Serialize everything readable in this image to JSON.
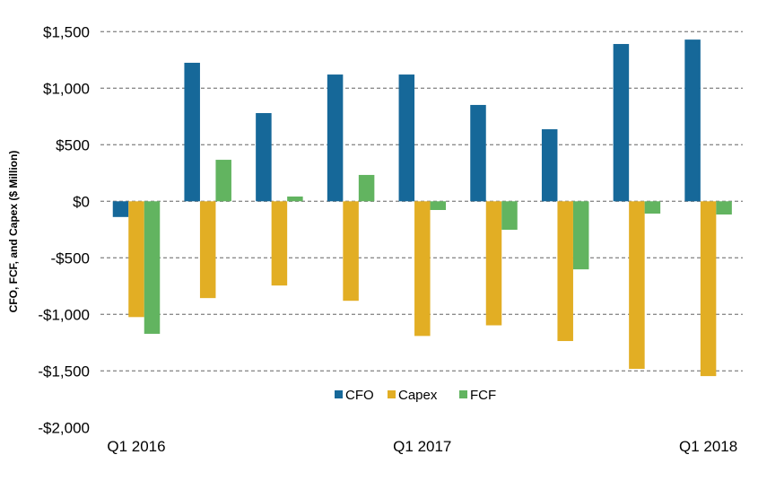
{
  "chart_data": {
    "type": "bar",
    "title": "",
    "xlabel": "",
    "ylabel": "CFO, FCF, and Capex ($ Million)",
    "ylim": [
      -2000,
      1500
    ],
    "yticks": [
      1500,
      1000,
      500,
      0,
      -500,
      -1000,
      -1500,
      -2000
    ],
    "ytick_labels": [
      "$1,500",
      "$1,000",
      "$500",
      "$0",
      "-$500",
      "-$1,000",
      "-$1,500",
      "-$2,000"
    ],
    "x_tick_labels": [
      "Q1 2016",
      "",
      "",
      "",
      "Q1 2017",
      "",
      "",
      "",
      "Q1 2018"
    ],
    "grid": "horizontal dashed",
    "legend_position": "bottom-center",
    "series": [
      {
        "name": "CFO",
        "color": "#166899",
        "values": [
          -139,
          1225,
          780,
          1121,
          1121,
          852,
          637,
          1391,
          1430
        ]
      },
      {
        "name": "Capex",
        "color": "#E2AE24",
        "values": [
          -1024,
          -856,
          -745,
          -880,
          -1191,
          -1097,
          -1236,
          -1482,
          -1546
        ]
      },
      {
        "name": "FCF",
        "color": "#62B460",
        "values": [
          -1172,
          367,
          42,
          233,
          -77,
          -252,
          -602,
          -109,
          -117
        ]
      }
    ]
  }
}
